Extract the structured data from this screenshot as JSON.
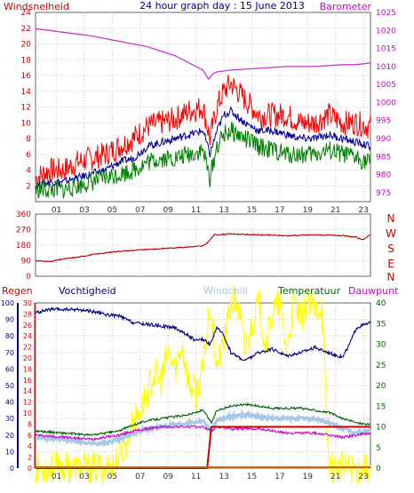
{
  "chart_data": [
    {
      "type": "line",
      "title": "24 hour graph day : 15 June 2013",
      "left_label": "Windsnelheid",
      "right_label": "Barometer",
      "x_ticks": [
        "01",
        "03",
        "05",
        "07",
        "09",
        "11",
        "13",
        "15",
        "17",
        "19",
        "21",
        "23"
      ],
      "y_left_ticks": [
        "2",
        "4",
        "6",
        "8",
        "10",
        "12",
        "14",
        "16",
        "18",
        "20",
        "22",
        "24"
      ],
      "y_left_range": [
        0,
        24
      ],
      "y_right_ticks": [
        "975",
        "980",
        "985",
        "990",
        "995",
        "1000",
        "1005",
        "1010",
        "1015",
        "1020",
        "1025"
      ],
      "y_right_range": [
        972.5,
        1025
      ],
      "grid": true,
      "colors": {
        "gust": "#ff0000",
        "average": "#00008b",
        "speed": "#008000",
        "barometer": "#cc33cc",
        "left_axis": "#cc0000",
        "right_axis": "#cc00cc",
        "title": "#000080"
      },
      "series": [
        {
          "role": "gust",
          "x": [
            0,
            1,
            2,
            3,
            4,
            5,
            6,
            7,
            8,
            9,
            10,
            11,
            12,
            12.5,
            13,
            13.5,
            14,
            15,
            16,
            17,
            18,
            19,
            20,
            21,
            22,
            23,
            24
          ],
          "y": [
            3,
            4,
            4,
            5,
            5.5,
            6,
            7,
            8,
            9.5,
            10,
            10.5,
            11.5,
            12,
            8,
            12,
            14,
            15,
            13,
            11,
            11,
            11,
            10,
            10,
            11,
            10,
            10,
            9.5
          ]
        },
        {
          "role": "average",
          "x": [
            0,
            1,
            2,
            3,
            4,
            5,
            6,
            7,
            8,
            9,
            10,
            11,
            12,
            12.5,
            13,
            13.5,
            14,
            15,
            16,
            17,
            18,
            19,
            20,
            21,
            22,
            23,
            24
          ],
          "y": [
            2,
            2.5,
            2.5,
            3,
            3.5,
            4,
            5,
            5.5,
            7,
            7.5,
            8,
            8.5,
            9,
            6,
            9,
            11,
            11.5,
            10,
            9,
            9,
            8.5,
            8,
            8,
            8.5,
            8,
            7.5,
            7
          ]
        },
        {
          "role": "speed",
          "x": [
            0,
            1,
            2,
            3,
            4,
            5,
            6,
            7,
            8,
            9,
            10,
            11,
            12,
            12.5,
            13,
            13.5,
            14,
            15,
            16,
            17,
            18,
            19,
            20,
            21,
            22,
            23,
            24
          ],
          "y": [
            1.5,
            1.5,
            1.5,
            2,
            2.5,
            3,
            3.5,
            4,
            5,
            5.5,
            5.5,
            6,
            6.5,
            3,
            7,
            8.5,
            9,
            8,
            7,
            6.5,
            6,
            6,
            6,
            6.5,
            6,
            5.5,
            5
          ]
        },
        {
          "role": "barometer",
          "x": [
            0,
            2,
            4,
            6,
            8,
            10,
            11,
            12,
            12.4,
            12.7,
            13,
            14,
            16,
            18,
            20,
            22,
            23,
            24
          ],
          "y": [
            1020.5,
            1019.5,
            1018.5,
            1017,
            1015.5,
            1013,
            1011,
            1009,
            1006.5,
            1008,
            1008.5,
            1009,
            1009.5,
            1010,
            1010,
            1010.5,
            1010.5,
            1011
          ]
        }
      ]
    },
    {
      "type": "line",
      "label_letters": [
        "N",
        "W",
        "S",
        "E",
        "N"
      ],
      "y_ticks": [
        "0",
        "90",
        "180",
        "270",
        "360"
      ],
      "y_range": [
        0,
        360
      ],
      "color": "#bb0000",
      "series": [
        {
          "role": "direction",
          "x": [
            0,
            1,
            2,
            3,
            4,
            5,
            6,
            7,
            8,
            9,
            10,
            11,
            12,
            12.4,
            12.8,
            14,
            16,
            18,
            20,
            22,
            23,
            23.4,
            24
          ],
          "y": [
            90,
            85,
            100,
            110,
            125,
            135,
            145,
            150,
            155,
            160,
            165,
            170,
            175,
            200,
            240,
            245,
            240,
            235,
            240,
            235,
            225,
            210,
            240
          ]
        }
      ]
    },
    {
      "type": "line",
      "labels": {
        "rain": "Regen",
        "humidity": "Vochtigheid",
        "windchill": "Windchill",
        "temperature": "Temperatuur",
        "dewpoint": "Dauwpunt"
      },
      "y_hum_ticks": [
        "0",
        "10",
        "20",
        "30",
        "40",
        "50",
        "60",
        "70",
        "80",
        "90",
        "100"
      ],
      "y_rain_ticks": [
        "0",
        "2",
        "4",
        "6",
        "8",
        "10",
        "12",
        "14",
        "16",
        "18",
        "20",
        "22",
        "24",
        "26",
        "28",
        "30"
      ],
      "y_temp_ticks": [
        "0",
        "5",
        "10",
        "15",
        "20",
        "25",
        "30",
        "35",
        "40"
      ],
      "y_hum_range": [
        0,
        100
      ],
      "y_temp_range": [
        0,
        40
      ],
      "colors": {
        "rain": "#cc0000",
        "humidity": "#000080",
        "windchill": "#a8c8e8",
        "temperature": "#006400",
        "dewpoint": "#cc00cc",
        "solar": "#ffff00",
        "rain_label": "#cc0000",
        "hum_label": "#000080",
        "temp_label": "#006400"
      },
      "series": [
        {
          "role": "humidity",
          "x": [
            0,
            1,
            2,
            3,
            4,
            5,
            6,
            6.5,
            7,
            8,
            9,
            10,
            11,
            11.5,
            12,
            12.5,
            13,
            13.5,
            14,
            15,
            16,
            17,
            18,
            19,
            20,
            21,
            22,
            22.5,
            23,
            24
          ],
          "y": [
            94,
            96,
            96,
            96,
            95,
            93,
            92,
            90,
            88,
            87,
            86,
            85,
            80,
            77,
            78,
            75,
            85,
            80,
            70,
            65,
            70,
            72,
            68,
            70,
            73,
            70,
            67,
            75,
            85,
            88
          ]
        },
        {
          "role": "temperature",
          "x": [
            0,
            2,
            4,
            5,
            6,
            7,
            8,
            9,
            10,
            11,
            12,
            12.6,
            13,
            14,
            15,
            16,
            17,
            18,
            19,
            20,
            21,
            22,
            23,
            24
          ],
          "y": [
            9,
            8.5,
            8,
            8.5,
            9,
            10.5,
            11.5,
            12,
            12.5,
            13,
            14,
            11,
            14,
            15,
            15.5,
            15,
            14.5,
            14.5,
            14.5,
            14,
            13.5,
            12,
            11,
            10.5
          ]
        },
        {
          "role": "windchill",
          "x": [
            0,
            2,
            4,
            5,
            6,
            7,
            8,
            9,
            10,
            11,
            12,
            12.6,
            13,
            14,
            15,
            16,
            17,
            18,
            19,
            20,
            21,
            22,
            23,
            24
          ],
          "y": [
            7.5,
            7,
            6,
            6,
            7,
            8.5,
            9.5,
            10,
            10.5,
            11,
            11.5,
            9,
            11.5,
            12.5,
            13,
            12.5,
            12,
            12,
            12,
            12,
            11,
            9.5,
            8.5,
            9
          ]
        },
        {
          "role": "dewpoint",
          "x": [
            0,
            2,
            4,
            5,
            6,
            7,
            8,
            9,
            10,
            11,
            12,
            12.6,
            13,
            14,
            15,
            16,
            17,
            18,
            19,
            20,
            21,
            22,
            23,
            24
          ],
          "y": [
            8,
            7.5,
            7,
            7.5,
            8,
            9,
            9.5,
            10,
            10,
            10,
            10,
            9,
            10,
            9.5,
            9.5,
            9.5,
            9,
            8.5,
            8.5,
            8.5,
            8,
            7.5,
            8,
            8.5
          ]
        },
        {
          "role": "solar",
          "x": [
            0,
            5,
            5.5,
            6,
            6.5,
            7,
            7.5,
            8,
            8.5,
            9,
            9.5,
            10,
            10.5,
            11,
            11.5,
            12,
            12.5,
            13,
            13.5,
            14,
            14.5,
            15,
            15.5,
            16,
            16.5,
            17,
            17.5,
            18,
            18.5,
            19,
            19.5,
            20,
            20.5,
            21,
            22,
            24
          ],
          "y": [
            0,
            0,
            1,
            3,
            6,
            11,
            14,
            18,
            23,
            21,
            28,
            24,
            30,
            20,
            18,
            24,
            40,
            25,
            30,
            40,
            40,
            28,
            35,
            40,
            30,
            38,
            40,
            28,
            40,
            36,
            40,
            38,
            40,
            1,
            0,
            0
          ]
        },
        {
          "role": "rain",
          "x": [
            0,
            12.3,
            12.6,
            24
          ],
          "y": [
            0,
            0,
            7.5,
            7.5
          ]
        }
      ]
    }
  ]
}
